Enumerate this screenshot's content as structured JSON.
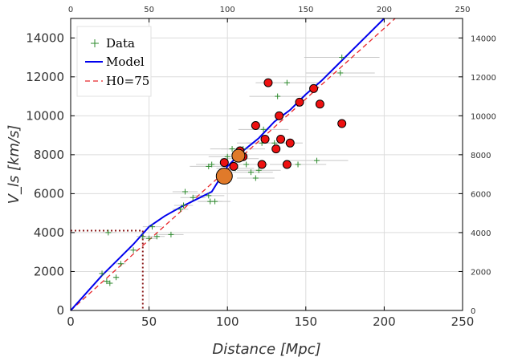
{
  "chart_data": {
    "type": "scatter",
    "xlabel": "Distance [Mpc]",
    "ylabel": "V_ls [km/s]",
    "xlim": [
      0,
      250
    ],
    "ylim": [
      0,
      15000
    ],
    "grid": true,
    "legend_position": "top-left",
    "x_ticks": [
      "0",
      "50",
      "100",
      "150",
      "200",
      "250"
    ],
    "y_ticks": [
      "0",
      "2000",
      "4000",
      "6000",
      "8000",
      "10000",
      "12000",
      "14000"
    ],
    "top_ticks": [
      "0",
      "50",
      "100",
      "150",
      "200",
      "250"
    ],
    "right_ticks": [
      "0",
      "2000",
      "4000",
      "6000",
      "8000",
      "10000",
      "12000",
      "14000"
    ],
    "legend": {
      "data": "Data",
      "model": "Model",
      "h0": "H0=75"
    },
    "colors": {
      "data": "#2e8b2e",
      "model": "#0000ee",
      "h0": "#e8262a",
      "highlight": "#ee1111",
      "big_marker": "#e07a2a",
      "dotted": "#8b1a1a",
      "errorbar": "#c8c8c8",
      "grid": "#dcdcdc"
    },
    "model_series": {
      "name": "Model",
      "x": [
        0,
        10,
        20,
        30,
        40,
        50,
        60,
        70,
        80,
        90,
        100,
        110,
        120,
        130,
        140,
        150,
        160,
        170,
        180,
        190,
        200
      ],
      "y": [
        0,
        900,
        1800,
        2600,
        3400,
        4300,
        4850,
        5300,
        5700,
        6100,
        7400,
        8200,
        8850,
        9700,
        10300,
        11100,
        11800,
        12600,
        13400,
        14200,
        15000
      ]
    },
    "h0_line": {
      "name": "H0=75",
      "x": [
        0,
        207
      ],
      "y": [
        0,
        15000
      ]
    },
    "dotted_guide": {
      "x": 46,
      "y": 4100
    },
    "data_points": [
      {
        "x": 20,
        "y": 1900,
        "xerr": 2
      },
      {
        "x": 23,
        "y": 1500,
        "xerr": 2
      },
      {
        "x": 25,
        "y": 1400,
        "xerr": 2
      },
      {
        "x": 24,
        "y": 4000,
        "xerr": 5
      },
      {
        "x": 29,
        "y": 1700,
        "xerr": 2
      },
      {
        "x": 32,
        "y": 2400,
        "xerr": 3
      },
      {
        "x": 40,
        "y": 3100,
        "xerr": 3
      },
      {
        "x": 46,
        "y": 3800,
        "xerr": 4
      },
      {
        "x": 50,
        "y": 3700,
        "xerr": 5
      },
      {
        "x": 52,
        "y": 4300,
        "xerr": 6
      },
      {
        "x": 55,
        "y": 3800,
        "xerr": 5
      },
      {
        "x": 64,
        "y": 3900,
        "xerr": 8
      },
      {
        "x": 70,
        "y": 5200,
        "xerr": 5
      },
      {
        "x": 72,
        "y": 5400,
        "xerr": 6
      },
      {
        "x": 73,
        "y": 6100,
        "xerr": 8
      },
      {
        "x": 78,
        "y": 5800,
        "xerr": 8
      },
      {
        "x": 88,
        "y": 5900,
        "xerr": 10
      },
      {
        "x": 89,
        "y": 5600,
        "xerr": 8
      },
      {
        "x": 92,
        "y": 5600,
        "xerr": 10
      },
      {
        "x": 88,
        "y": 7400,
        "xerr": 12
      },
      {
        "x": 90,
        "y": 7500,
        "xerr": 10
      },
      {
        "x": 100,
        "y": 7900,
        "xerr": 12
      },
      {
        "x": 103,
        "y": 8300,
        "xerr": 14
      },
      {
        "x": 105,
        "y": 7300,
        "xerr": 12
      },
      {
        "x": 108,
        "y": 7800,
        "xerr": 12
      },
      {
        "x": 110,
        "y": 8300,
        "xerr": 14
      },
      {
        "x": 112,
        "y": 7500,
        "xerr": 14
      },
      {
        "x": 115,
        "y": 7100,
        "xerr": 14
      },
      {
        "x": 118,
        "y": 6800,
        "xerr": 12
      },
      {
        "x": 120,
        "y": 7200,
        "xerr": 14
      },
      {
        "x": 122,
        "y": 8600,
        "xerr": 16
      },
      {
        "x": 123,
        "y": 9300,
        "xerr": 16
      },
      {
        "x": 130,
        "y": 8600,
        "xerr": 18
      },
      {
        "x": 132,
        "y": 11000,
        "xerr": 18
      },
      {
        "x": 138,
        "y": 11700,
        "xerr": 20
      },
      {
        "x": 145,
        "y": 7500,
        "xerr": 18
      },
      {
        "x": 157,
        "y": 7700,
        "xerr": 20
      },
      {
        "x": 172,
        "y": 12200,
        "xerr": 22
      },
      {
        "x": 173,
        "y": 13000,
        "xerr": 24
      }
    ],
    "highlight_points": [
      {
        "x": 98,
        "y": 7600
      },
      {
        "x": 104,
        "y": 7400
      },
      {
        "x": 106,
        "y": 8000
      },
      {
        "x": 108,
        "y": 8200
      },
      {
        "x": 110,
        "y": 7900
      },
      {
        "x": 118,
        "y": 9500
      },
      {
        "x": 122,
        "y": 7500
      },
      {
        "x": 124,
        "y": 8800
      },
      {
        "x": 126,
        "y": 11700
      },
      {
        "x": 131,
        "y": 8300
      },
      {
        "x": 133,
        "y": 10000
      },
      {
        "x": 134,
        "y": 8800
      },
      {
        "x": 138,
        "y": 7500
      },
      {
        "x": 140,
        "y": 8600
      },
      {
        "x": 146,
        "y": 10700
      },
      {
        "x": 155,
        "y": 11400
      },
      {
        "x": 159,
        "y": 10600
      },
      {
        "x": 173,
        "y": 9600
      }
    ],
    "big_points": [
      {
        "x": 98,
        "y": 6900,
        "size": "large"
      },
      {
        "x": 107,
        "y": 7950,
        "size": "medium"
      }
    ]
  }
}
